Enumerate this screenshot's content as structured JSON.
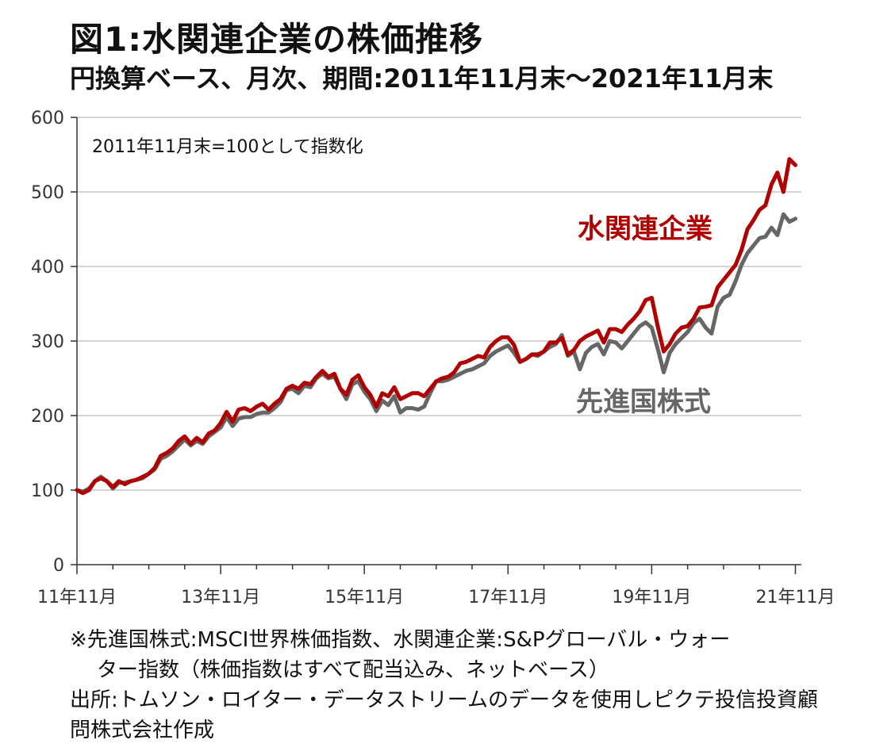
{
  "title": "図1:水関連企業の株価推移",
  "subtitle": "円換算ベース、月次、期間:2011年11月末～2021年11月末",
  "notes": [
    "※先進国株式:MSCI世界株価指数、水関連企業:S&Pグローバル・ウォー",
    "ター指数（株価指数はすべて配当込み、ネットベース）",
    "出所:トムソン・ロイター・データストリームのデータを使用しピクテ投信投資顧",
    "問株式会社作成"
  ],
  "chart_data": {
    "type": "line",
    "annotation": "2011年11月末=100として指数化",
    "ylim": [
      0,
      600
    ],
    "yticks": [
      0,
      100,
      200,
      300,
      400,
      500,
      600
    ],
    "xlim": [
      0,
      121
    ],
    "xticks": [
      {
        "pos": 0,
        "label": "11年11月"
      },
      {
        "pos": 24,
        "label": "13年11月"
      },
      {
        "pos": 48,
        "label": "15年11月"
      },
      {
        "pos": 72,
        "label": "17年11月"
      },
      {
        "pos": 96,
        "label": "19年11月"
      },
      {
        "pos": 120,
        "label": "21年11月"
      }
    ],
    "grid": true,
    "series": [
      {
        "name": "水関連企業",
        "color": "#b00000",
        "values": [
          100,
          96,
          100,
          112,
          116,
          112,
          104,
          112,
          108,
          112,
          114,
          118,
          122,
          130,
          146,
          150,
          156,
          166,
          172,
          162,
          170,
          164,
          176,
          180,
          190,
          205,
          192,
          208,
          210,
          206,
          212,
          216,
          208,
          216,
          222,
          236,
          240,
          236,
          244,
          242,
          252,
          260,
          252,
          256,
          236,
          228,
          248,
          254,
          238,
          228,
          212,
          230,
          226,
          238,
          222,
          226,
          230,
          230,
          226,
          236,
          246,
          250,
          252,
          258,
          270,
          272,
          276,
          280,
          278,
          292,
          300,
          305,
          305,
          295,
          272,
          276,
          282,
          282,
          286,
          298,
          298,
          304,
          282,
          288,
          300,
          306,
          310,
          314,
          298,
          316,
          316,
          312,
          322,
          330,
          340,
          355,
          358,
          320,
          286,
          296,
          310,
          318,
          320,
          330,
          345,
          346,
          348,
          372,
          382,
          392,
          402,
          422,
          450,
          462,
          476,
          482,
          510,
          526,
          500,
          544,
          536
        ]
      },
      {
        "name": "先進国株式",
        "color": "#666666",
        "values": [
          100,
          98,
          102,
          112,
          118,
          112,
          102,
          110,
          110,
          112,
          114,
          116,
          122,
          128,
          142,
          146,
          152,
          160,
          168,
          160,
          166,
          162,
          172,
          178,
          184,
          198,
          186,
          196,
          198,
          198,
          202,
          204,
          204,
          210,
          218,
          234,
          236,
          230,
          240,
          238,
          250,
          256,
          250,
          252,
          236,
          222,
          242,
          246,
          232,
          222,
          206,
          220,
          214,
          226,
          204,
          210,
          210,
          208,
          212,
          230,
          246,
          246,
          248,
          252,
          256,
          260,
          262,
          266,
          270,
          280,
          286,
          290,
          294,
          284,
          272,
          276,
          282,
          280,
          286,
          292,
          296,
          308,
          280,
          286,
          262,
          284,
          292,
          296,
          282,
          300,
          298,
          290,
          300,
          310,
          320,
          325,
          318,
          290,
          258,
          284,
          296,
          304,
          312,
          324,
          330,
          318,
          310,
          346,
          358,
          362,
          380,
          402,
          418,
          428,
          438,
          440,
          452,
          442,
          470,
          460,
          464
        ]
      }
    ]
  }
}
